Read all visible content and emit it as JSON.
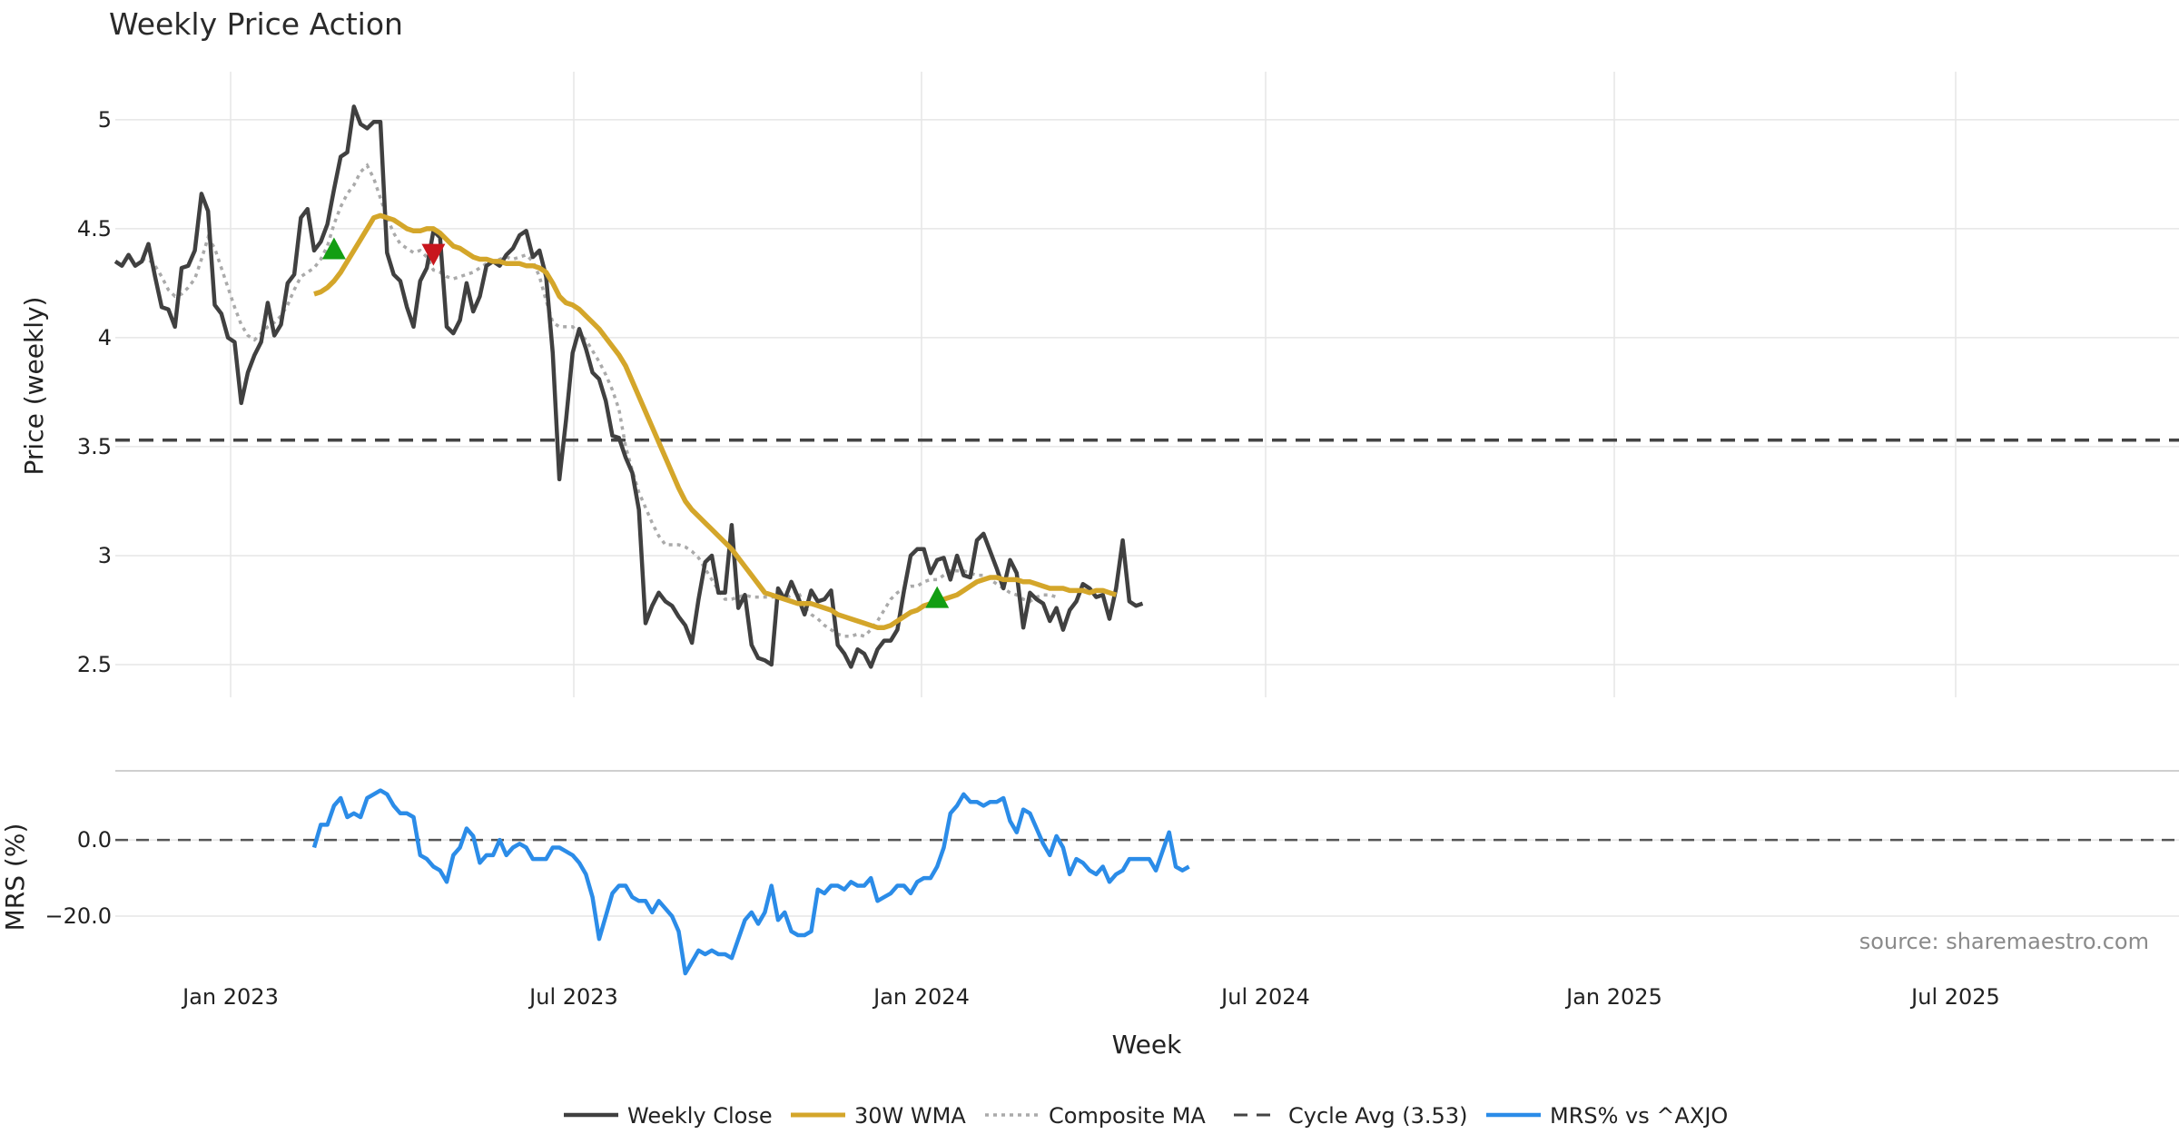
{
  "chart_data": {
    "type": "line",
    "title": "Weekly Price Action",
    "xlabel": "Week",
    "x_tick_labels": [
      "Jan 2023",
      "Jul 2023",
      "Jan 2024",
      "Jul 2024",
      "Jan 2025",
      "Jul 2025"
    ],
    "price_panel": {
      "ylabel": "Price (weekly)",
      "ylim": [
        2.35,
        5.22
      ],
      "y_ticks": [
        2.5,
        3,
        3.5,
        4,
        4.5,
        5
      ],
      "y_tick_labels": [
        "2.5",
        "3",
        "3.5",
        "4",
        "4.5",
        "5"
      ],
      "weekly_close": [
        4.35,
        4.33,
        4.38,
        4.33,
        4.35,
        4.43,
        4.28,
        4.14,
        4.13,
        4.05,
        4.32,
        4.33,
        4.4,
        4.66,
        4.58,
        4.15,
        4.11,
        4.0,
        3.98,
        3.7,
        3.84,
        3.92,
        3.98,
        4.16,
        4.01,
        4.06,
        4.25,
        4.29,
        4.55,
        4.59,
        4.4,
        4.44,
        4.52,
        4.68,
        4.83,
        4.85,
        5.06,
        4.98,
        4.96,
        4.99,
        4.99,
        4.39,
        4.29,
        4.26,
        4.14,
        4.05,
        4.26,
        4.32,
        4.49,
        4.46,
        4.05,
        4.02,
        4.08,
        4.25,
        4.12,
        4.19,
        4.33,
        4.35,
        4.33,
        4.38,
        4.41,
        4.47,
        4.49,
        4.37,
        4.4,
        4.28,
        3.93,
        3.35,
        3.62,
        3.93,
        4.04,
        3.95,
        3.84,
        3.81,
        3.71,
        3.55,
        3.54,
        3.45,
        3.38,
        3.21,
        2.69,
        2.77,
        2.83,
        2.79,
        2.77,
        2.72,
        2.68,
        2.6,
        2.8,
        2.97,
        3.0,
        2.83,
        2.83,
        3.14,
        2.76,
        2.82,
        2.59,
        2.53,
        2.52,
        2.5,
        2.85,
        2.8,
        2.88,
        2.81,
        2.73,
        2.84,
        2.79,
        2.8,
        2.84,
        2.59,
        2.55,
        2.49,
        2.57,
        2.55,
        2.49,
        2.57,
        2.61,
        2.61,
        2.66,
        2.84,
        3.0,
        3.03,
        3.03,
        2.92,
        2.98,
        2.99,
        2.89,
        3.0,
        2.91,
        2.9,
        3.07,
        3.1,
        3.02,
        2.94,
        2.85,
        2.98,
        2.92,
        2.67,
        2.83,
        2.8,
        2.78,
        2.7,
        2.76,
        2.66,
        2.75,
        2.79,
        2.87,
        2.85,
        2.81,
        2.82,
        2.71,
        2.85,
        3.07,
        2.79,
        2.77,
        2.78
      ],
      "wma_30w": {
        "start_index": 30,
        "values": [
          4.2,
          4.21,
          4.23,
          4.26,
          4.3,
          4.35,
          4.4,
          4.45,
          4.5,
          4.55,
          4.56,
          4.55,
          4.54,
          4.52,
          4.5,
          4.49,
          4.49,
          4.5,
          4.5,
          4.48,
          4.45,
          4.42,
          4.41,
          4.39,
          4.37,
          4.36,
          4.36,
          4.35,
          4.35,
          4.34,
          4.34,
          4.34,
          4.33,
          4.33,
          4.32,
          4.3,
          4.25,
          4.19,
          4.16,
          4.15,
          4.13,
          4.1,
          4.07,
          4.04,
          4.0,
          3.96,
          3.92,
          3.87,
          3.8,
          3.73,
          3.66,
          3.59,
          3.52,
          3.45,
          3.38,
          3.31,
          3.25,
          3.21,
          3.18,
          3.15,
          3.12,
          3.09,
          3.06,
          3.03,
          2.99,
          2.95,
          2.91,
          2.87,
          2.83,
          2.82,
          2.81,
          2.8,
          2.79,
          2.78,
          2.78,
          2.78,
          2.77,
          2.76,
          2.75,
          2.73,
          2.72,
          2.71,
          2.7,
          2.69,
          2.68,
          2.67,
          2.67,
          2.68,
          2.7,
          2.72,
          2.74,
          2.75,
          2.77,
          2.78,
          2.79,
          2.8,
          2.81,
          2.82,
          2.84,
          2.86,
          2.88,
          2.89,
          2.9,
          2.9,
          2.89,
          2.89,
          2.89,
          2.88,
          2.88,
          2.87,
          2.86,
          2.85,
          2.85,
          2.85,
          2.84,
          2.84,
          2.84,
          2.83,
          2.84,
          2.84,
          2.83,
          2.82
        ]
      },
      "composite_ma": {
        "start_index": 4,
        "values": [
          4.36,
          4.36,
          4.33,
          4.28,
          4.22,
          4.19,
          4.2,
          4.23,
          4.27,
          4.36,
          4.46,
          4.41,
          4.32,
          4.23,
          4.14,
          4.06,
          4.01,
          3.99,
          4.02,
          4.05,
          4.07,
          4.1,
          4.15,
          4.22,
          4.28,
          4.3,
          4.32,
          4.36,
          4.42,
          4.52,
          4.6,
          4.66,
          4.7,
          4.76,
          4.79,
          4.73,
          4.64,
          4.55,
          4.48,
          4.43,
          4.41,
          4.39,
          4.4,
          4.37,
          4.31,
          4.3,
          4.28,
          4.27,
          4.28,
          4.29,
          4.3,
          4.32,
          4.34,
          4.35,
          4.36,
          4.37,
          4.36,
          4.37,
          4.38,
          4.35,
          4.28,
          4.17,
          4.07,
          4.05,
          4.05,
          4.05,
          4.02,
          3.99,
          3.94,
          3.89,
          3.83,
          3.76,
          3.67,
          3.5,
          3.39,
          3.29,
          3.22,
          3.15,
          3.09,
          3.05,
          3.05,
          3.05,
          3.04,
          3.02,
          2.99,
          2.94,
          2.89,
          2.84,
          2.8,
          2.8,
          2.81,
          2.82,
          2.81,
          2.81,
          2.81,
          2.81,
          2.81,
          2.8,
          2.82,
          2.84,
          2.76,
          2.73,
          2.71,
          2.68,
          2.66,
          2.64,
          2.63,
          2.63,
          2.64,
          2.63,
          2.66,
          2.7,
          2.75,
          2.8,
          2.83,
          2.85,
          2.86,
          2.86,
          2.88,
          2.89,
          2.89,
          2.91,
          2.93,
          2.93,
          2.93,
          2.92,
          2.91,
          2.91,
          2.89,
          2.87,
          2.85,
          2.83,
          2.82,
          2.8,
          2.79,
          2.81,
          2.82,
          2.82,
          2.81
        ]
      },
      "cycle_avg": 3.53,
      "signals": [
        {
          "type": "buy",
          "index": 33,
          "value": 4.41
        },
        {
          "type": "sell",
          "index": 48,
          "value": 4.38
        },
        {
          "type": "buy",
          "index": 124,
          "value": 2.81
        }
      ]
    },
    "mrs_panel": {
      "ylabel": "MRS (%)",
      "ylim": [
        -35,
        16
      ],
      "y_ticks": [
        0,
        -20
      ],
      "y_tick_labels": [
        "0.0",
        "−20.0"
      ],
      "zero_line": 0,
      "mrs_pct": {
        "start_index": 30,
        "values": [
          -2,
          4,
          4,
          9,
          11,
          6,
          7,
          6,
          11,
          12,
          13,
          12,
          9,
          7,
          7,
          6,
          -4,
          -5,
          -7,
          -8,
          -11,
          -4,
          -2,
          3,
          1,
          -6,
          -4,
          -4,
          0,
          -4,
          -2,
          -1,
          -2,
          -5,
          -5,
          -5,
          -2,
          -2,
          -3,
          -4,
          -6,
          -9,
          -15,
          -26,
          -20,
          -14,
          -12,
          -12,
          -15,
          -16,
          -16,
          -19,
          -16,
          -18,
          -20,
          -24,
          -35,
          -32,
          -29,
          -30,
          -29,
          -30,
          -30,
          -31,
          -26,
          -21,
          -19,
          -22,
          -19,
          -12,
          -21,
          -19,
          -24,
          -25,
          -25,
          -24,
          -13,
          -14,
          -12,
          -12,
          -13,
          -11,
          -12,
          -12,
          -10,
          -16,
          -15,
          -14,
          -12,
          -12,
          -14,
          -11,
          -10,
          -10,
          -7,
          -2,
          7,
          9,
          12,
          10,
          10,
          9,
          10,
          10,
          11,
          5,
          2,
          8,
          7,
          3,
          -1,
          -4,
          1,
          -2,
          -9,
          -5,
          -6,
          -8,
          -9,
          -7,
          -11,
          -9,
          -8,
          -5,
          -5,
          -5,
          -5,
          -8,
          -3,
          2,
          -7,
          -8,
          -7
        ]
      }
    },
    "source_text": "source: sharemaestro.com",
    "legend": {
      "position": "bottom-center",
      "entries": [
        {
          "label": "Weekly Close",
          "color": "#404040",
          "style": "solid"
        },
        {
          "label": "30W WMA",
          "color": "#d4a62a",
          "style": "solid"
        },
        {
          "label": "Composite MA",
          "color": "#aaaaaa",
          "style": "dotted"
        },
        {
          "label": "Cycle Avg (3.53)",
          "color": "#444444",
          "style": "dashed"
        },
        {
          "label": "MRS% vs ^AXJO",
          "color": "#2b8ce8",
          "style": "solid"
        }
      ]
    },
    "colors": {
      "close": "#404040",
      "wma": "#d4a62a",
      "composite": "#aaaaaa",
      "cycle": "#444444",
      "mrs": "#2b8ce8",
      "buy": "#139e13",
      "sell": "#c8161d"
    }
  }
}
